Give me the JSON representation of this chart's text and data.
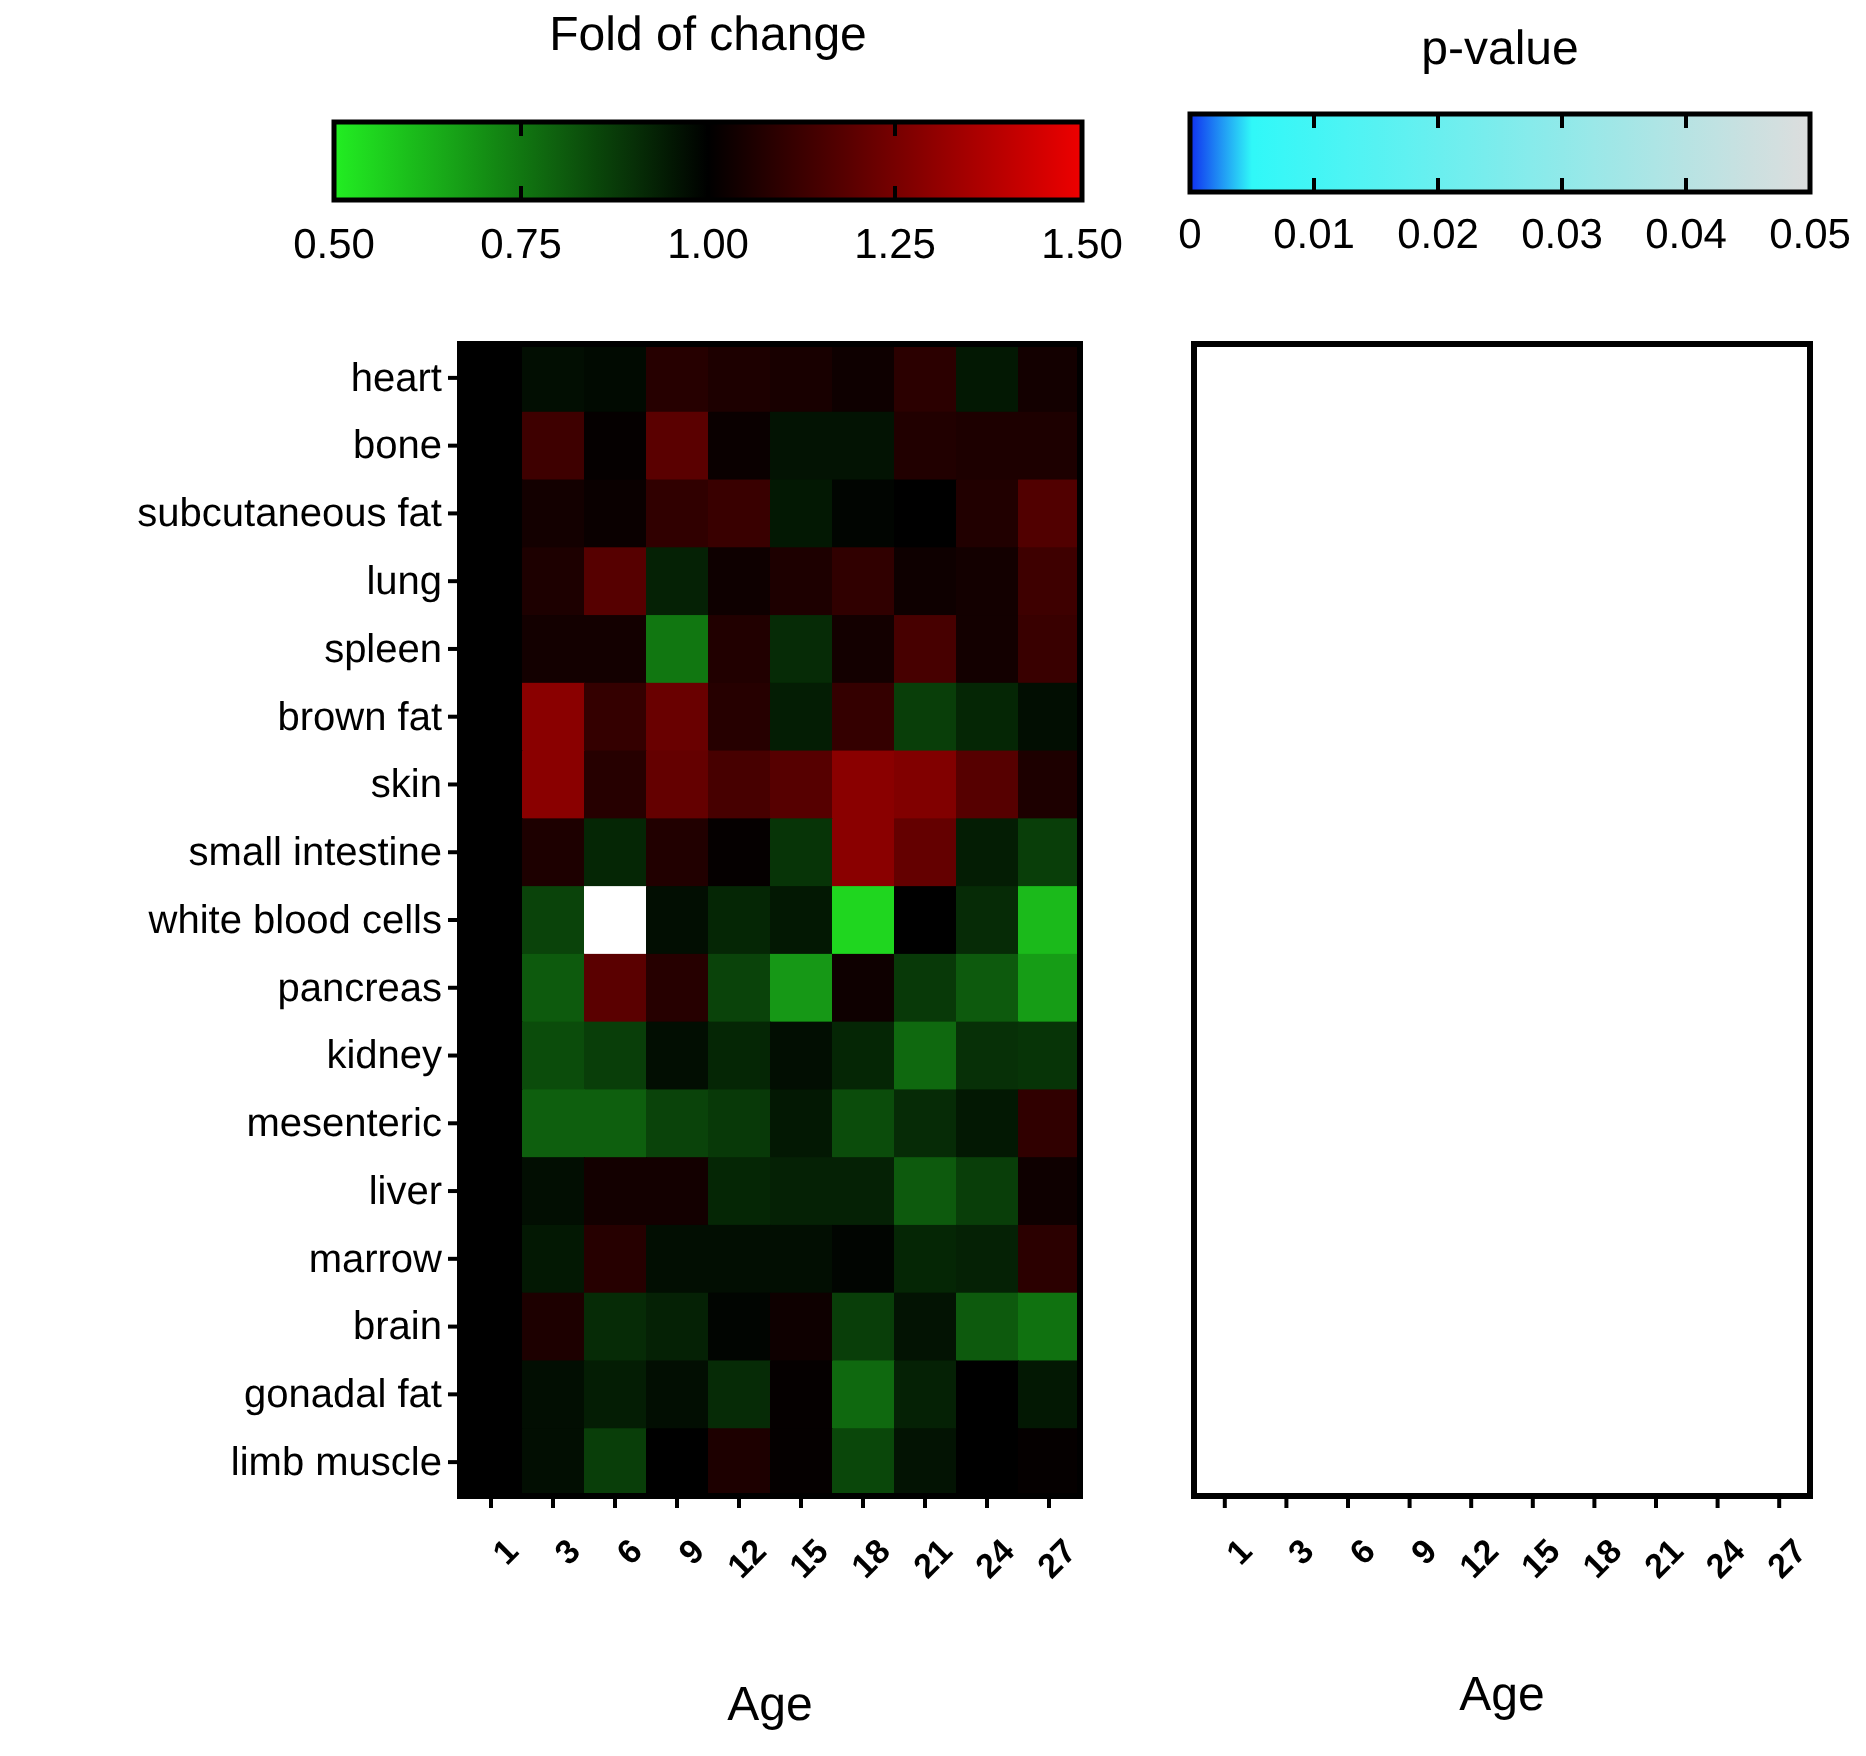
{
  "chart_data": [
    {
      "type": "heatmap",
      "clabel": "Fold of change",
      "xlabel": "Age",
      "clim": [
        0.5,
        1.5
      ],
      "cticks": [
        {
          "value": 0.5,
          "label": "0.50"
        },
        {
          "value": 0.75,
          "label": "0.75"
        },
        {
          "value": 1,
          "label": "1.00"
        },
        {
          "value": 1.25,
          "label": "1.25"
        },
        {
          "value": 1.5,
          "label": "1.50"
        }
      ],
      "categories": [
        "1",
        "3",
        "6",
        "9",
        "12",
        "15",
        "18",
        "21",
        "24",
        "27"
      ],
      "y_categories": [
        "heart",
        "bone",
        "subcutaneous fat",
        "lung",
        "spleen",
        "brown fat",
        "skin",
        "small intestine",
        "white blood cells",
        "pancreas",
        "kidney",
        "mesenteric",
        "liver",
        "marrow",
        "brain",
        "gonadal fat",
        "limb muscle"
      ],
      "cells": [
        [
          1,
          0.97,
          0.98,
          1.08,
          1.06,
          1.05,
          1.03,
          1.09,
          0.95,
          1.04
        ],
        [
          1,
          1.13,
          1.01,
          1.19,
          1.02,
          0.96,
          0.96,
          1.07,
          1.06,
          1.06
        ],
        [
          1,
          1.04,
          1.02,
          1.1,
          1.12,
          0.95,
          0.99,
          1,
          1.07,
          1.17
        ],
        [
          1,
          1.06,
          1.18,
          0.93,
          1.03,
          1.06,
          1.1,
          1.03,
          1.04,
          1.13
        ],
        [
          1,
          1.04,
          1.04,
          0.75,
          1.07,
          0.91,
          1.04,
          1.15,
          1.04,
          1.12
        ],
        [
          1,
          1.29,
          1.11,
          1.22,
          1.08,
          0.94,
          1.11,
          0.87,
          0.92,
          0.97
        ],
        [
          1,
          1.29,
          1.08,
          1.21,
          1.15,
          1.18,
          1.29,
          1.27,
          1.18,
          1.06
        ],
        [
          1,
          1.06,
          0.92,
          1.07,
          1.01,
          0.89,
          1.29,
          1.21,
          0.94,
          0.87
        ],
        [
          1,
          0.86,
          null,
          0.97,
          0.92,
          0.95,
          0.55,
          1,
          0.91,
          0.61
        ],
        [
          1,
          0.81,
          1.19,
          1.08,
          0.86,
          0.68,
          1.03,
          0.88,
          0.81,
          0.67
        ],
        [
          1,
          0.84,
          0.87,
          0.97,
          0.92,
          0.97,
          0.92,
          0.78,
          0.9,
          0.89
        ],
        [
          1,
          0.8,
          0.8,
          0.86,
          0.88,
          0.95,
          0.84,
          0.91,
          0.95,
          1.1
        ],
        [
          1,
          0.97,
          1.04,
          1.04,
          0.92,
          0.93,
          0.93,
          0.81,
          0.87,
          1.03
        ],
        [
          1,
          0.95,
          1.08,
          0.97,
          0.97,
          0.97,
          0.99,
          0.92,
          0.93,
          1.09
        ],
        [
          1,
          1.06,
          0.91,
          0.93,
          0.99,
          1.03,
          0.87,
          0.96,
          0.81,
          0.76
        ],
        [
          1,
          0.97,
          0.94,
          0.97,
          0.91,
          1.01,
          0.78,
          0.93,
          1,
          0.95
        ],
        [
          1,
          0.97,
          0.87,
          1,
          1.06,
          1.01,
          0.85,
          0.96,
          1,
          1.01
        ]
      ]
    },
    {
      "type": "other",
      "clabel": "p-value",
      "xlabel": "Age",
      "annotations": [
        "0",
        "0.01",
        "0.02",
        "0.03",
        "0.04",
        "0.05"
      ],
      "categories": [
        "1",
        "3",
        "6",
        "9",
        "12",
        "15",
        "18",
        "21",
        "24",
        "27"
      ]
    }
  ]
}
